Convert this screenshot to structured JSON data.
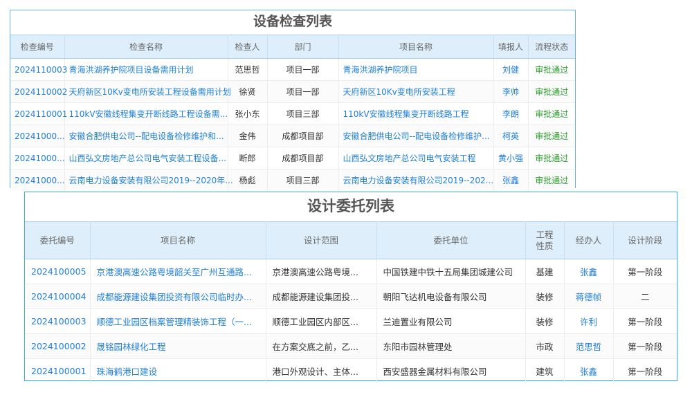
{
  "inspection": {
    "title": "设备检查列表",
    "columns": [
      "检查编号",
      "检查名称",
      "检查人",
      "部门",
      "项目名称",
      "填报人",
      "流程状态"
    ],
    "rows": [
      [
        "2024110003",
        "青海洪湖养护院项目设备需用计划",
        "范思哲",
        "项目一部",
        "青海洪湖养护院项目",
        "刘健",
        "审批通过"
      ],
      [
        "2024110002",
        "天府新区10Kv变电所安装工程设备需用计划",
        "徐贤",
        "项目一部",
        "天府新区10Kv变电所安装工程",
        "李帅",
        "审批通过"
      ],
      [
        "2024110001",
        "110kV安徽线程集变开断线路工程设备需...",
        "张小东",
        "项目三部",
        "110kV安徽线程集变开断线路工程",
        "李朗",
        "审批通过"
      ],
      [
        "20241000...",
        "安徽合肥供电公司--配电设备检修维护和...",
        "金伟",
        "成都项目部",
        "安徽合肥供电公司--配电设备检修维护...",
        "柯英",
        "审批通过"
      ],
      [
        "20241000...",
        "山西弘文房地产总公司电气安装工程设备...",
        "断郎",
        "成都项目部",
        "山西弘文房地产总公司电气安装工程",
        "黄小强",
        "审批通过"
      ],
      [
        "20241000...",
        "云南电力设备安装有限公司2019--2020年...",
        "杨彪",
        "项目三部",
        "云南电力设备安装有限公司2019--202...",
        "张鑫",
        "审批通过"
      ]
    ]
  },
  "design": {
    "title": "设计委托列表",
    "columns": [
      "委托编号",
      "项目名称",
      "设计范围",
      "委托单位",
      "工程性质",
      "经办人",
      "设计阶段"
    ],
    "rows": [
      [
        "2024100005",
        "京港澳高速公路粤境韶关至广州互通路...",
        "京港澳高速公路粤境...",
        "中国铁建中铁十五局集团城建公司",
        "基建",
        "张鑫",
        "第一阶段"
      ],
      [
        "2024100004",
        "成都能源建设集团投资有限公司临时办...",
        "成都能源建设集团投...",
        "朝阳飞达机电设备有限公司",
        "装修",
        "蒋德帧",
        "二"
      ],
      [
        "2024100003",
        "顺德工业园区档案管理精装饰工程（一...",
        "顺德工业园区内部区...",
        "兰迪置业有限公司",
        "装修",
        "许利",
        "第一阶段"
      ],
      [
        "2024100002",
        "晟铭园林绿化工程",
        "在方案交底之前，乙...",
        "东阳市园林管理处",
        "市政",
        "范思哲",
        "第一阶段"
      ],
      [
        "2024100001",
        "珠海鹤港口建设",
        "港口外观设计、主体...",
        "西安盛器金属材料有限公司",
        "建筑",
        "张鑫",
        "第一阶段"
      ]
    ]
  },
  "colors": {
    "border": "#2aa0e0",
    "header_bg": "#deeefb",
    "link": "#1e7fd8",
    "status_ok": "#2e9a2e"
  }
}
